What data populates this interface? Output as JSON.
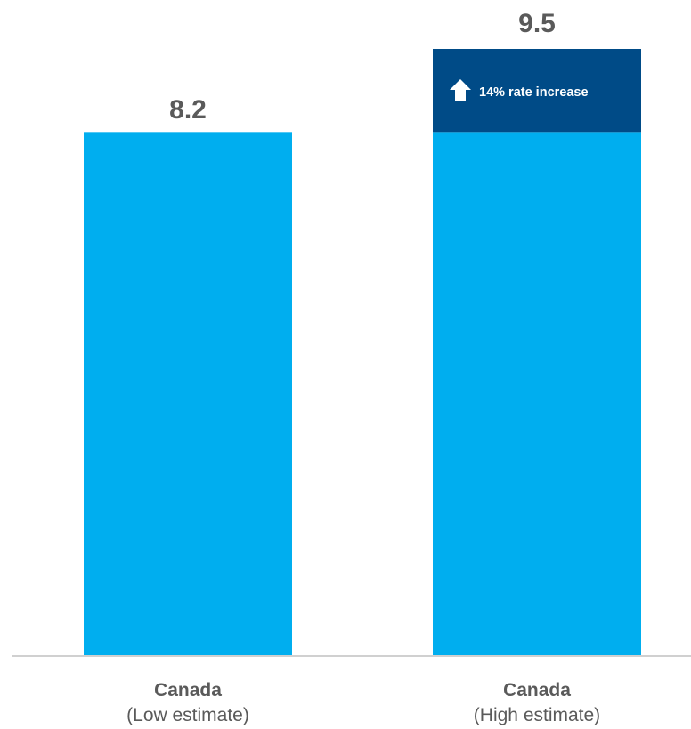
{
  "chart_data": {
    "type": "bar",
    "categories": [
      {
        "name": "Canada",
        "sublabel": "(Low estimate)"
      },
      {
        "name": "Canada",
        "sublabel": "(High estimate)"
      }
    ],
    "values": [
      8.2,
      9.5
    ],
    "value_labels": [
      "8.2",
      "9.5"
    ],
    "stacked_segments": [
      {
        "base": 8.2,
        "increment": 0
      },
      {
        "base": 8.2,
        "increment": 1.3
      }
    ],
    "annotation": {
      "text": "14% rate increase",
      "icon": "arrow-up-icon",
      "bar_index": 1
    },
    "ylim": [
      0,
      9.5
    ],
    "grid": false,
    "colors": {
      "base": "#00aeef",
      "increment": "#004b87",
      "axis": "#d0d0d0",
      "text": "#5a5a5a"
    }
  }
}
